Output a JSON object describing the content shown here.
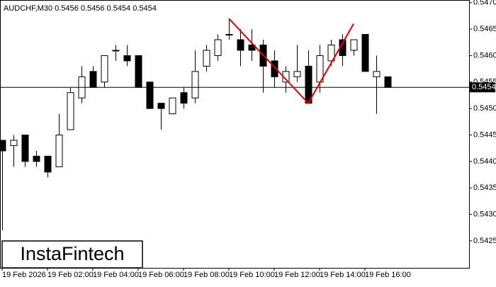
{
  "chart_data": {
    "type": "candlestick",
    "title": "AUDCHF,M30  0.5456 0.5456 0.5454 0.5454",
    "logo": "InstaFintech",
    "categories": [
      "19 Feb 2026",
      null,
      null,
      null,
      "19 Feb 02:00",
      null,
      null,
      null,
      "19 Feb 04:00",
      null,
      null,
      null,
      "19 Feb 06:00",
      null,
      null,
      null,
      "19 Feb 08:00",
      null,
      null,
      null,
      "19 Feb 10:00",
      null,
      null,
      null,
      "19 Feb 12:00",
      null,
      null,
      null,
      "19 Feb 14:00",
      null,
      null,
      null,
      "19 Feb 16:00",
      null,
      null
    ],
    "open": [
      0.5444,
      0.5443,
      0.5445,
      0.5441,
      0.5441,
      0.5439,
      0.5446,
      0.5452,
      0.5457,
      0.5455,
      0.5461,
      0.546,
      0.546,
      0.5455,
      0.5451,
      0.5449,
      0.5453,
      0.5452,
      0.5458,
      0.546,
      0.5464,
      0.5463,
      0.5462,
      0.5462,
      0.5459,
      0.5455,
      0.5456,
      0.5458,
      0.5455,
      0.5459,
      0.5463,
      0.5461,
      0.5464,
      0.5456,
      0.5456
    ],
    "high": [
      0.5444,
      0.5445,
      0.5445,
      0.5442,
      0.5441,
      0.5449,
      0.5454,
      0.5458,
      0.5458,
      0.546,
      0.5462,
      0.5462,
      0.546,
      0.5455,
      0.5451,
      0.5452,
      0.5454,
      0.5461,
      0.5462,
      0.5464,
      0.5467,
      0.5465,
      0.5465,
      0.5463,
      0.5461,
      0.5458,
      0.5462,
      0.5461,
      0.5462,
      0.5463,
      0.5464,
      0.5463,
      0.5464,
      0.546,
      0.5456
    ],
    "low": [
      0.5427,
      0.5439,
      0.5439,
      0.5439,
      0.5437,
      0.5439,
      0.5446,
      0.5451,
      0.5454,
      0.5454,
      0.5459,
      0.5458,
      0.5454,
      0.545,
      0.5446,
      0.5449,
      0.545,
      0.5451,
      0.5457,
      0.5459,
      0.5463,
      0.5458,
      0.5459,
      0.5453,
      0.5454,
      0.5453,
      0.5455,
      0.5451,
      0.5453,
      0.5458,
      0.5458,
      0.546,
      0.5457,
      0.5449,
      0.5454
    ],
    "close": [
      0.5442,
      0.5444,
      0.544,
      0.544,
      0.5438,
      0.5445,
      0.5453,
      0.5456,
      0.5454,
      0.546,
      0.5461,
      0.5459,
      0.5454,
      0.545,
      0.545,
      0.5452,
      0.5451,
      0.5457,
      0.5461,
      0.5463,
      0.5464,
      0.5461,
      0.5461,
      0.5458,
      0.5456,
      0.5457,
      0.5457,
      0.5451,
      0.546,
      0.5462,
      0.546,
      0.5463,
      0.5457,
      0.5457,
      0.5454
    ],
    "up_color": "#ffffff",
    "down_color": "#000000",
    "ylim": [
      0.54199,
      0.54705
    ],
    "yticks": [
      {
        "value": 0.5425,
        "label": "0.5425"
      },
      {
        "value": 0.543,
        "label": "0.5430"
      },
      {
        "value": 0.5435,
        "label": "0.5435"
      },
      {
        "value": 0.544,
        "label": "0.5440"
      },
      {
        "value": 0.5445,
        "label": "0.5445"
      },
      {
        "value": 0.545,
        "label": "0.5450"
      },
      {
        "value": 0.5455,
        "label": "0.5455"
      },
      {
        "value": 0.546,
        "label": "0.5460"
      },
      {
        "value": 0.5465,
        "label": "0.5465"
      },
      {
        "value": 0.547,
        "label": "0.5470"
      }
    ],
    "last_price": {
      "value": 0.5454,
      "label": "0.5454"
    },
    "pattern": {
      "color": "#e00000",
      "x": [
        20,
        27,
        31
      ],
      "values": [
        0.5467,
        0.5451,
        0.5466
      ]
    }
  }
}
